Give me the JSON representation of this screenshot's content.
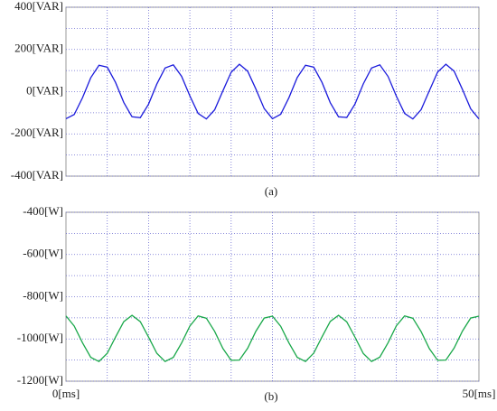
{
  "chart_data": [
    {
      "type": "line",
      "caption": "(a)",
      "x": [
        0,
        1,
        2,
        3,
        4,
        5,
        6,
        7,
        8,
        9,
        10,
        11,
        12,
        13,
        14,
        15,
        16,
        17,
        18,
        19,
        20,
        21,
        22,
        23,
        24,
        25,
        26,
        27,
        28,
        29,
        30,
        31,
        32,
        33,
        34,
        35,
        36,
        37,
        38,
        39,
        40,
        41,
        42,
        43,
        44,
        45,
        46,
        47,
        48,
        49,
        50
      ],
      "series": [
        {
          "color": "#1c1cdc",
          "values": [
            -128,
            -108,
            -29,
            66,
            125,
            116,
            44,
            -51,
            -119,
            -123,
            -59,
            36,
            112,
            127,
            73,
            -20,
            -103,
            -129,
            -86,
            4,
            92,
            130,
            97,
            12,
            -80,
            -128,
            -107,
            -28,
            67,
            125,
            116,
            44,
            -52,
            -119,
            -122,
            -58,
            37,
            112,
            127,
            72,
            -21,
            -103,
            -129,
            -85,
            5,
            93,
            130,
            97,
            11,
            -81,
            -129
          ]
        }
      ],
      "xlim": [
        0,
        50
      ],
      "xgrid": [
        5,
        10,
        15,
        20,
        25,
        30,
        35,
        40,
        45
      ],
      "ylim": [
        -400,
        400
      ],
      "yticks": [
        {
          "value": 400,
          "label": "400[VAR]"
        },
        {
          "value": 200,
          "label": "200[VAR]"
        },
        {
          "value": 0,
          "label": "0[VAR]"
        },
        {
          "value": -200,
          "label": "-200[VAR]"
        },
        {
          "value": -400,
          "label": "-400[VAR]"
        }
      ],
      "ygrid": [
        300,
        100,
        -100,
        -300
      ],
      "grid": true
    },
    {
      "type": "line",
      "caption": "(b)",
      "x": [
        0,
        1,
        2,
        3,
        4,
        5,
        6,
        7,
        8,
        9,
        10,
        11,
        12,
        13,
        14,
        15,
        16,
        17,
        18,
        19,
        20,
        21,
        22,
        23,
        24,
        25,
        26,
        27,
        28,
        29,
        30,
        31,
        32,
        33,
        34,
        35,
        36,
        37,
        38,
        39,
        40,
        41,
        42,
        43,
        44,
        45,
        46,
        47,
        48,
        49,
        50
      ],
      "series": [
        {
          "color": "#1aa84a",
          "values": [
            -891,
            -939,
            -1018,
            -1087,
            -1107,
            -1068,
            -991,
            -918,
            -888,
            -918,
            -991,
            -1068,
            -1107,
            -1087,
            -1019,
            -939,
            -891,
            -902,
            -964,
            -1045,
            -1101,
            -1100,
            -1044,
            -963,
            -901,
            -892,
            -940,
            -1019,
            -1087,
            -1107,
            -1067,
            -990,
            -917,
            -888,
            -919,
            -992,
            -1069,
            -1107,
            -1086,
            -1018,
            -938,
            -891,
            -902,
            -965,
            -1046,
            -1101,
            -1100,
            -1043,
            -963,
            -901,
            -892
          ]
        }
      ],
      "xlim": [
        0,
        50
      ],
      "xgrid": [
        5,
        10,
        15,
        20,
        25,
        30,
        35,
        40,
        45
      ],
      "xticks": [
        {
          "value": 0,
          "label": "0[ms]"
        },
        {
          "value": 50,
          "label": "50[ms]"
        }
      ],
      "ylim": [
        -1200,
        -400
      ],
      "yticks": [
        {
          "value": -400,
          "label": "-400[W]"
        },
        {
          "value": -600,
          "label": "-600[W]"
        },
        {
          "value": -800,
          "label": "-800[W]"
        },
        {
          "value": -1000,
          "label": "-1000[W]"
        },
        {
          "value": -1200,
          "label": "-1200[W]"
        }
      ],
      "ygrid": [
        -500,
        -700,
        -900,
        -1100
      ],
      "grid": true
    }
  ]
}
